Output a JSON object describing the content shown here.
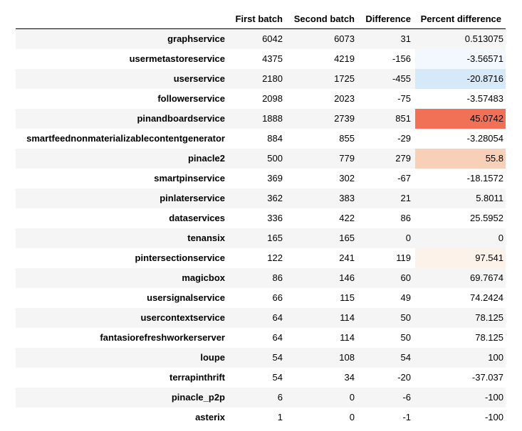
{
  "table": {
    "columns": [
      "First batch",
      "Second batch",
      "Difference",
      "Percent difference"
    ],
    "rows": [
      {
        "name": "graphservice",
        "first": "6042",
        "second": "6073",
        "diff": "31",
        "pct": "0.513075",
        "pct_color": ""
      },
      {
        "name": "usermetastoreservice",
        "first": "4375",
        "second": "4219",
        "diff": "-156",
        "pct": "-3.56571",
        "pct_color": "#f2f8fd"
      },
      {
        "name": "userservice",
        "first": "2180",
        "second": "1725",
        "diff": "-455",
        "pct": "-20.8716",
        "pct_color": "#d6e9f8"
      },
      {
        "name": "followerservice",
        "first": "2098",
        "second": "2023",
        "diff": "-75",
        "pct": "-3.57483",
        "pct_color": ""
      },
      {
        "name": "pinandboardservice",
        "first": "1888",
        "second": "2739",
        "diff": "851",
        "pct": "45.0742",
        "pct_color": "#f07156"
      },
      {
        "name": "smartfeednonmaterializablecontentgenerator",
        "first": "884",
        "second": "855",
        "diff": "-29",
        "pct": "-3.28054",
        "pct_color": ""
      },
      {
        "name": "pinacle2",
        "first": "500",
        "second": "779",
        "diff": "279",
        "pct": "55.8",
        "pct_color": "#f8d0b7"
      },
      {
        "name": "smartpinservice",
        "first": "369",
        "second": "302",
        "diff": "-67",
        "pct": "-18.1572",
        "pct_color": ""
      },
      {
        "name": "pinlaterservice",
        "first": "362",
        "second": "383",
        "diff": "21",
        "pct": "5.8011",
        "pct_color": ""
      },
      {
        "name": "dataservices",
        "first": "336",
        "second": "422",
        "diff": "86",
        "pct": "25.5952",
        "pct_color": ""
      },
      {
        "name": "tenansix",
        "first": "165",
        "second": "165",
        "diff": "0",
        "pct": "0",
        "pct_color": ""
      },
      {
        "name": "pintersectionservice",
        "first": "122",
        "second": "241",
        "diff": "119",
        "pct": "97.541",
        "pct_color": "#fdf2ea"
      },
      {
        "name": "magicbox",
        "first": "86",
        "second": "146",
        "diff": "60",
        "pct": "69.7674",
        "pct_color": ""
      },
      {
        "name": "usersignalservice",
        "first": "66",
        "second": "115",
        "diff": "49",
        "pct": "74.2424",
        "pct_color": ""
      },
      {
        "name": "usercontextservice",
        "first": "64",
        "second": "114",
        "diff": "50",
        "pct": "78.125",
        "pct_color": ""
      },
      {
        "name": "fantasiorefreshworkerserver",
        "first": "64",
        "second": "114",
        "diff": "50",
        "pct": "78.125",
        "pct_color": ""
      },
      {
        "name": "loupe",
        "first": "54",
        "second": "108",
        "diff": "54",
        "pct": "100",
        "pct_color": ""
      },
      {
        "name": "terrapinthrift",
        "first": "54",
        "second": "34",
        "diff": "-20",
        "pct": "-37.037",
        "pct_color": ""
      },
      {
        "name": "pinacle_p2p",
        "first": "6",
        "second": "0",
        "diff": "-6",
        "pct": "-100",
        "pct_color": ""
      },
      {
        "name": "asterix",
        "first": "1",
        "second": "0",
        "diff": "-1",
        "pct": "-100",
        "pct_color": ""
      }
    ]
  }
}
